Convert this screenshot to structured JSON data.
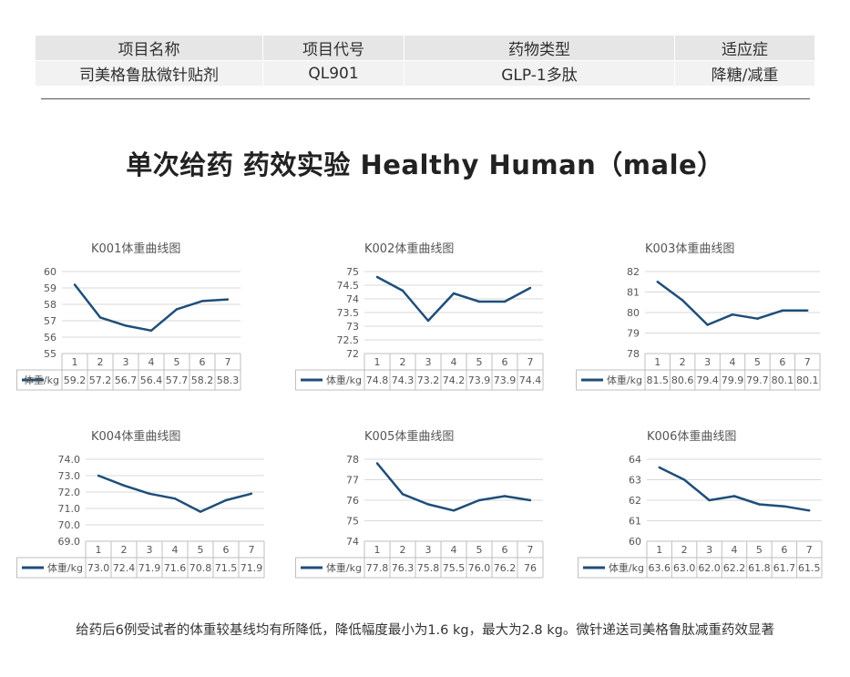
{
  "info_table": {
    "headers": [
      "项目名称",
      "项目代号",
      "药物类型",
      "适应症"
    ],
    "values": [
      "司美格鲁肽微针贴剂",
      "QL901",
      "GLP-1多肽",
      "降糖/减重"
    ]
  },
  "headline": "单次给药  药效实验  Healthy Human（male）",
  "footnote": "给药后6例受试者的体重较基线均有所降低，降低幅度最小为1.6 kg，最大为2.8 kg。微针递送司美格鲁肽减重药效显著",
  "colors": {
    "series_line": "#1f4e79",
    "grid": "#d9d9d9",
    "table_border": "#bfbfbf"
  },
  "chart_data": [
    {
      "type": "line",
      "title": "K001体重曲线图",
      "x": [
        "1",
        "2",
        "3",
        "4",
        "5",
        "6",
        "7"
      ],
      "series": [
        {
          "name": "体重/kg",
          "values": [
            59.2,
            57.2,
            56.7,
            56.4,
            57.7,
            58.2,
            58.3
          ],
          "labels": [
            "59.2",
            "57.2",
            "56.7",
            "56.4",
            "57.7",
            "58.2",
            "58.3"
          ]
        }
      ],
      "ylim": [
        55,
        60
      ],
      "yticks": [
        "55",
        "56",
        "57",
        "58",
        "59",
        "60"
      ],
      "grid": true,
      "legend": "data-table-left"
    },
    {
      "type": "line",
      "title": "K002体重曲线图",
      "x": [
        "1",
        "2",
        "3",
        "4",
        "5",
        "6",
        "7"
      ],
      "series": [
        {
          "name": "体重/kg",
          "values": [
            74.8,
            74.3,
            73.2,
            74.2,
            73.9,
            73.9,
            74.4
          ],
          "labels": [
            "74.8",
            "74.3",
            "73.2",
            "74.2",
            "73.9",
            "73.9",
            "74.4"
          ]
        }
      ],
      "ylim": [
        72,
        75
      ],
      "yticks": [
        "72",
        "72.5",
        "73",
        "73.5",
        "74",
        "74.5",
        "75"
      ],
      "grid": true,
      "legend": "data-table-left"
    },
    {
      "type": "line",
      "title": "K003体重曲线图",
      "x": [
        "1",
        "2",
        "3",
        "4",
        "5",
        "6",
        "7"
      ],
      "series": [
        {
          "name": "体重/kg",
          "values": [
            81.5,
            80.6,
            79.4,
            79.9,
            79.7,
            80.1,
            80.1
          ],
          "labels": [
            "81.5",
            "80.6",
            "79.4",
            "79.9",
            "79.7",
            "80.1",
            "80.1"
          ]
        }
      ],
      "ylim": [
        78,
        82
      ],
      "yticks": [
        "78",
        "79",
        "80",
        "81",
        "82"
      ],
      "grid": true,
      "legend": "data-table-left"
    },
    {
      "type": "line",
      "title": "K004体重曲线图",
      "x": [
        "1",
        "2",
        "3",
        "4",
        "5",
        "6",
        "7"
      ],
      "series": [
        {
          "name": "体重/kg",
          "values": [
            73.0,
            72.4,
            71.9,
            71.6,
            70.8,
            71.5,
            71.9
          ],
          "labels": [
            "73.0",
            "72.4",
            "71.9",
            "71.6",
            "70.8",
            "71.5",
            "71.9"
          ]
        }
      ],
      "ylim": [
        69,
        74
      ],
      "yticks": [
        "69.0",
        "70.0",
        "71.0",
        "72.0",
        "73.0",
        "74.0"
      ],
      "grid": true,
      "legend": "data-table-left"
    },
    {
      "type": "line",
      "title": "K005体重曲线图",
      "x": [
        "1",
        "2",
        "3",
        "4",
        "5",
        "6",
        "7"
      ],
      "series": [
        {
          "name": "体重/kg",
          "values": [
            77.8,
            76.3,
            75.8,
            75.5,
            76.0,
            76.2,
            76.0
          ],
          "labels": [
            "77.8",
            "76.3",
            "75.8",
            "75.5",
            "76.0",
            "76.2",
            "76"
          ]
        }
      ],
      "ylim": [
        74,
        78
      ],
      "yticks": [
        "74",
        "75",
        "76",
        "77",
        "78"
      ],
      "grid": true,
      "legend": "data-table-left"
    },
    {
      "type": "line",
      "title": "K006体重曲线图",
      "x": [
        "1",
        "2",
        "3",
        "4",
        "5",
        "6",
        "7"
      ],
      "series": [
        {
          "name": "体重/kg",
          "values": [
            63.6,
            63.0,
            62.0,
            62.2,
            61.8,
            61.7,
            61.5
          ],
          "labels": [
            "63.6",
            "63.0",
            "62.0",
            "62.2",
            "61.8",
            "61.7",
            "61.5"
          ]
        }
      ],
      "ylim": [
        60,
        64
      ],
      "yticks": [
        "60",
        "61",
        "62",
        "63",
        "64"
      ],
      "grid": true,
      "legend": "data-table-left"
    }
  ]
}
